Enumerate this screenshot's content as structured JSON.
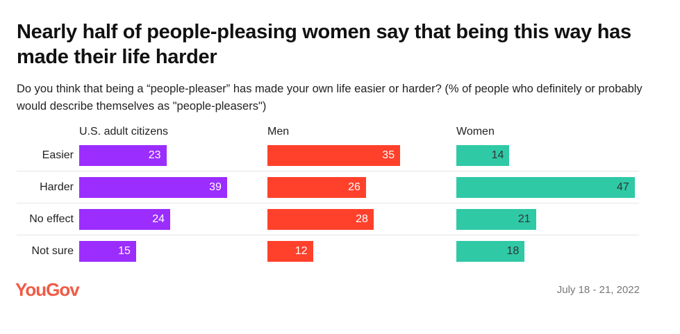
{
  "chart_data": {
    "type": "bar",
    "orientation": "horizontal",
    "title": "Nearly half of people-pleasing women say that being this way has made their life harder",
    "subtitle": "Do you think that being a “people-pleaser” has made your own life easier or harder? (% of people who definitely or probably would describe themselves as \"people-pleasers\")",
    "categories": [
      "Easier",
      "Harder",
      "No effect",
      "Not sure"
    ],
    "series": [
      {
        "name": "U.S. adult citizens",
        "values": [
          23,
          39,
          24,
          15
        ],
        "color": "#9b2dff",
        "label_color": "#ffffff"
      },
      {
        "name": "Men",
        "values": [
          35,
          26,
          28,
          12
        ],
        "color": "#ff412c",
        "label_color": "#ffffff"
      },
      {
        "name": "Women",
        "values": [
          14,
          47,
          21,
          18
        ],
        "color": "#2fc9a6",
        "label_color": "#333333"
      }
    ],
    "grid": false,
    "legend": "none"
  },
  "footer": {
    "logo": "YouGov",
    "date": "July 18 - 21, 2022"
  }
}
